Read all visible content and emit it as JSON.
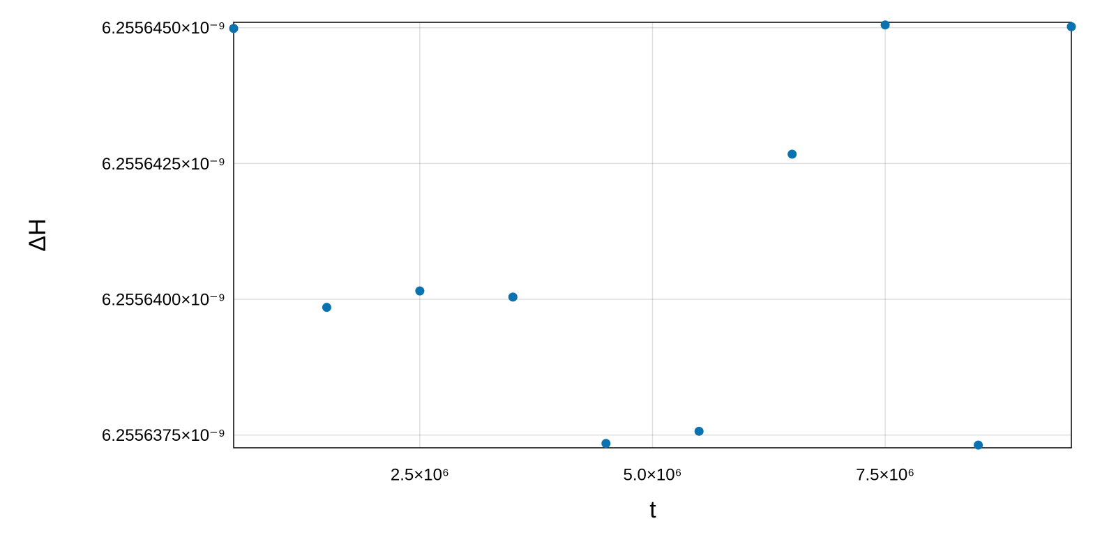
{
  "chart_data": {
    "type": "scatter",
    "xlabel": "t",
    "ylabel": "ΔH",
    "x": [
      500000,
      1500000,
      2500000,
      3500000,
      4500000,
      5500000,
      6500000,
      7500000,
      8500000,
      9500000
    ],
    "series": [
      {
        "color": "#0b72b0",
        "values": [
          6.255644988e-09,
          6.255639851e-09,
          6.255640153e-09,
          6.255640041e-09,
          6.255637345e-09,
          6.255637569e-09,
          6.255642672e-09,
          6.255645052e-09,
          6.255637315e-09,
          6.25564502e-09
        ]
      }
    ],
    "xlim": [
      500000,
      9500000
    ],
    "xticks": [
      {
        "value": 2500000,
        "label": "2.5×10⁶"
      },
      {
        "value": 5000000,
        "label": "5.0×10⁶"
      },
      {
        "value": 7500000,
        "label": "7.5×10⁶"
      }
    ],
    "ylim": [
      6.255637265e-09,
      6.2556451e-09
    ],
    "yticks": [
      {
        "value": 6.2556375e-09,
        "label": "6.2556375×10⁻⁹"
      },
      {
        "value": 6.25564e-09,
        "label": "6.2556400×10⁻⁹"
      },
      {
        "value": 6.2556425e-09,
        "label": "6.2556425×10⁻⁹"
      },
      {
        "value": 6.255645e-09,
        "label": "6.2556450×10⁻⁹"
      }
    ],
    "grid": true
  }
}
